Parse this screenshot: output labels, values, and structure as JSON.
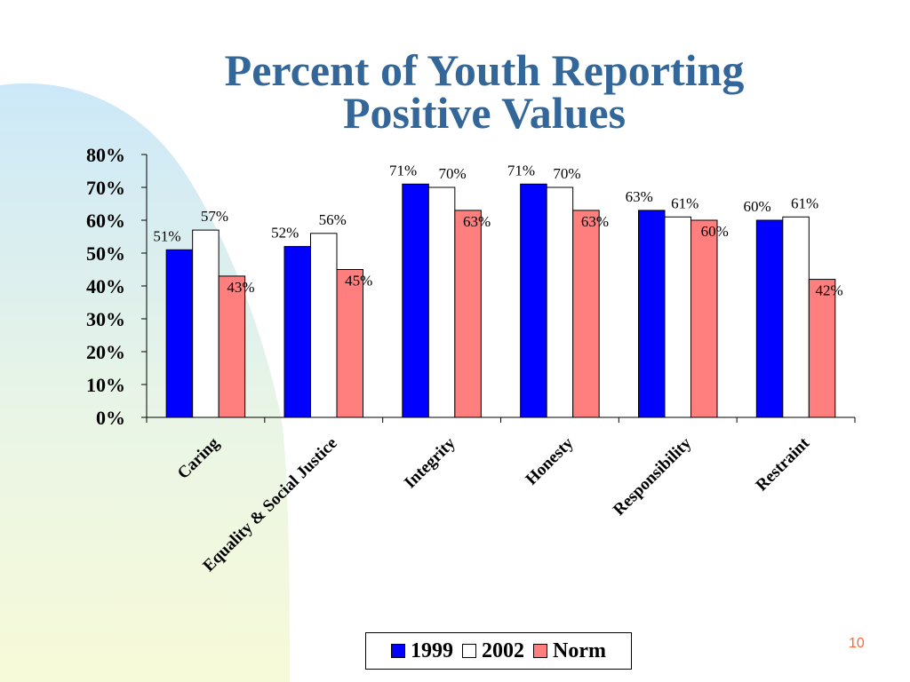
{
  "slide": {
    "title_line1": "Percent of Youth Reporting",
    "title_line2": "Positive Values",
    "page_number": "10"
  },
  "colors": {
    "title": "#336699",
    "page_number": "#ff6633",
    "bg_blue": "#cce8f8",
    "bg_yellow": "#f7fad8"
  },
  "chart_data": {
    "type": "bar",
    "categories": [
      "Caring",
      "Equality & Social Justice",
      "Integrity",
      "Honesty",
      "Responsibility",
      "Restraint"
    ],
    "series": [
      {
        "name": "1999",
        "color": "#0000ff",
        "values": [
          51,
          52,
          71,
          71,
          63,
          60
        ],
        "labels": [
          "51%",
          "52%",
          "71%",
          "71%",
          "63%",
          "60%"
        ]
      },
      {
        "name": "2002",
        "color": "#ffffff",
        "values": [
          57,
          56,
          70,
          70,
          61,
          61
        ],
        "labels": [
          "57%",
          "56%",
          "70%",
          "70%",
          "61%",
          "61%"
        ]
      },
      {
        "name": "Norm",
        "color": "#ff7f7f",
        "values": [
          43,
          45,
          63,
          63,
          60,
          42
        ],
        "labels": [
          "43%",
          "45%",
          "63%",
          "63%",
          "60%",
          "42%"
        ]
      }
    ],
    "ylim": [
      0,
      80
    ],
    "yticks": [
      "0%",
      "10%",
      "20%",
      "30%",
      "40%",
      "50%",
      "60%",
      "70%",
      "80%"
    ],
    "grid": false,
    "legend_position": "bottom"
  }
}
